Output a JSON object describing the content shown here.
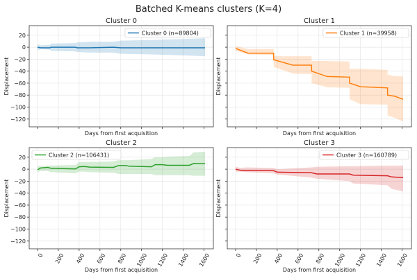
{
  "title": "Batched K-means clusters (K=4)",
  "colors": {
    "grid": "#e6e6e6",
    "axis": "#333333"
  },
  "chart_data": [
    {
      "type": "line",
      "title": "Cluster 0",
      "xlabel": "Days from first acquisition",
      "ylabel": "Displacement",
      "xlim": [
        -80,
        1690
      ],
      "ylim": [
        -133,
        36
      ],
      "xticks": [
        0,
        200,
        400,
        600,
        800,
        1000,
        1200,
        1400,
        1600
      ],
      "yticks": [
        20,
        0,
        -20,
        -40,
        -60,
        -80,
        -100,
        -120
      ],
      "show_xticklabels": false,
      "show_yticklabels": true,
      "grid": true,
      "legend_position": "upper right",
      "series": [
        {
          "name": "Cluster 0 (n=89804)",
          "color": "#1f77b4",
          "x": [
            0,
            30,
            120,
            130,
            365,
            380,
            500,
            730,
            800,
            1095,
            1460,
            1610
          ],
          "mean": [
            0,
            -1,
            -1,
            0,
            0,
            -1,
            -1,
            0,
            -1,
            -1,
            -1,
            -1
          ],
          "upper": [
            5,
            3,
            4,
            6,
            7,
            8,
            9,
            9,
            11,
            12,
            14,
            15
          ],
          "lower": [
            -5,
            -3,
            -4,
            -6,
            -7,
            -8,
            -9,
            -9,
            -11,
            -12,
            -14,
            -15
          ]
        }
      ]
    },
    {
      "type": "line",
      "title": "Cluster 1",
      "xlabel": "Days from first acquisition",
      "ylabel": "Displacement",
      "xlim": [
        -80,
        1690
      ],
      "ylim": [
        -133,
        36
      ],
      "xticks": [
        0,
        200,
        400,
        600,
        800,
        1000,
        1200,
        1400,
        1600
      ],
      "yticks": [
        20,
        0,
        -20,
        -40,
        -60,
        -80,
        -100,
        -120
      ],
      "show_xticklabels": false,
      "show_yticklabels": false,
      "grid": true,
      "legend_position": "upper right",
      "series": [
        {
          "name": "Cluster 1 (n=39958)",
          "color": "#ff7f0e",
          "x": [
            0,
            120,
            365,
            366,
            550,
            730,
            731,
            880,
            1095,
            1096,
            1200,
            1460,
            1461,
            1530,
            1610
          ],
          "mean": [
            -2,
            -10,
            -10,
            -21,
            -30,
            -30,
            -40,
            -49,
            -50,
            -60,
            -66,
            -68,
            -80,
            -82,
            -87
          ],
          "upper": [
            2,
            -3,
            -3,
            -15,
            -15,
            -15,
            -23,
            -23,
            -24,
            -36,
            -36,
            -38,
            -46,
            -48,
            -49
          ],
          "lower": [
            -6,
            -12,
            -13,
            -33,
            -44,
            -45,
            -60,
            -67,
            -68,
            -87,
            -95,
            -96,
            -114,
            -118,
            -124
          ]
        }
      ]
    },
    {
      "type": "line",
      "title": "Cluster 2",
      "xlabel": "Days from first acquisition",
      "ylabel": "Displacement",
      "xlim": [
        -80,
        1690
      ],
      "ylim": [
        -133,
        36
      ],
      "xticks": [
        0,
        200,
        400,
        600,
        800,
        1000,
        1200,
        1400,
        1600
      ],
      "yticks": [
        20,
        0,
        -20,
        -40,
        -60,
        -80,
        -100,
        -120
      ],
      "show_xticklabels": true,
      "show_yticklabels": true,
      "grid": true,
      "legend_position": "upper left",
      "series": [
        {
          "name": "Cluster 2 (n=106431)",
          "color": "#2ca02c",
          "x": [
            0,
            30,
            100,
            130,
            365,
            400,
            450,
            500,
            730,
            780,
            850,
            880,
            1095,
            1130,
            1200,
            1250,
            1460,
            1500,
            1610
          ],
          "mean": [
            -1,
            2,
            3,
            1.5,
            0.5,
            4,
            4.5,
            3.5,
            3,
            6,
            6,
            5,
            4,
            7.5,
            7.5,
            6.5,
            6.5,
            9.5,
            9
          ],
          "upper": [
            5,
            5,
            6,
            6,
            7,
            12,
            12,
            12,
            13,
            15,
            15,
            15,
            17,
            20,
            20,
            21,
            22,
            28,
            29
          ],
          "lower": [
            -5,
            -3,
            -3,
            -5,
            -7,
            -4,
            -4,
            -5,
            -6,
            -8,
            -8,
            -8,
            -8,
            -10,
            -10,
            -10,
            -10,
            -11,
            -11
          ]
        }
      ]
    },
    {
      "type": "line",
      "title": "Cluster 3",
      "xlabel": "Days from first acquisition",
      "ylabel": "Displacement",
      "xlim": [
        -80,
        1690
      ],
      "ylim": [
        -133,
        36
      ],
      "xticks": [
        0,
        200,
        400,
        600,
        800,
        1000,
        1200,
        1400,
        1600
      ],
      "yticks": [
        20,
        0,
        -20,
        -40,
        -60,
        -80,
        -100,
        -120
      ],
      "show_xticklabels": true,
      "show_yticklabels": false,
      "grid": true,
      "legend_position": "upper right",
      "series": [
        {
          "name": "Cluster 3 (n=160789)",
          "color": "#d62728",
          "x": [
            0,
            50,
            100,
            365,
            400,
            730,
            780,
            1095,
            1130,
            1460,
            1500,
            1610
          ],
          "mean": [
            0,
            -2,
            -2.5,
            -2.5,
            -5,
            -6,
            -8,
            -8,
            -10,
            -11,
            -13,
            -14
          ],
          "upper": [
            4,
            2,
            3,
            2,
            0,
            3,
            4,
            5,
            5,
            6,
            6,
            6
          ],
          "lower": [
            -4,
            -4,
            -5,
            -7,
            -9,
            -14,
            -16,
            -20,
            -24,
            -27,
            -33,
            -37
          ]
        }
      ]
    }
  ]
}
